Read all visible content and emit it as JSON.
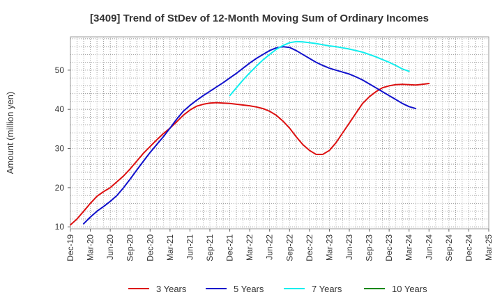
{
  "chart_data": {
    "type": "line",
    "title": "[3409]  Trend of StDev of 12-Month Moving Sum of Ordinary Incomes",
    "xlabel": "",
    "ylabel": "Amount (million yen)",
    "ylim": [
      9.5,
      58.5
    ],
    "yticks": [
      10,
      20,
      30,
      40,
      50
    ],
    "grid": true,
    "legend_position": "bottom",
    "x_labels": [
      "Dec-19",
      "Mar-20",
      "Jun-20",
      "Sep-20",
      "Dec-20",
      "Mar-21",
      "Jun-21",
      "Sep-21",
      "Dec-21",
      "Mar-22",
      "Jun-22",
      "Sep-22",
      "Dec-22",
      "Mar-23",
      "Jun-23",
      "Sep-23",
      "Dec-23",
      "Mar-24",
      "Jun-24",
      "Sep-24",
      "Dec-24",
      "Mar-25"
    ],
    "series": [
      {
        "name": "3 Years",
        "color": "#dd1111",
        "values": [
          10.5,
          12.0,
          14.0,
          16.0,
          17.8,
          19.0,
          20.0,
          21.5,
          23.0,
          24.8,
          26.8,
          28.8,
          30.5,
          32.2,
          33.8,
          35.2,
          36.8,
          38.5,
          39.8,
          40.8,
          41.3,
          41.6,
          41.7,
          41.6,
          41.5,
          41.3,
          41.1,
          40.9,
          40.6,
          40.2,
          39.5,
          38.5,
          37.0,
          35.2,
          33.0,
          31.0,
          29.5,
          28.5,
          28.5,
          29.5,
          31.5,
          34.0,
          36.5,
          39.0,
          41.5,
          43.2,
          44.5,
          45.5,
          46.0,
          46.3,
          46.4,
          46.3,
          46.2,
          46.4,
          46.6
        ]
      },
      {
        "name": "5 Years",
        "color": "#1111cc",
        "values": [
          null,
          null,
          10.8,
          12.5,
          14.0,
          15.2,
          16.5,
          18.0,
          20.0,
          22.2,
          24.5,
          26.8,
          29.0,
          31.0,
          33.0,
          35.2,
          37.5,
          39.5,
          41.0,
          42.3,
          43.5,
          44.6,
          45.7,
          46.8,
          48.0,
          49.2,
          50.5,
          51.8,
          53.0,
          54.0,
          55.0,
          55.7,
          56.0,
          55.8,
          55.0,
          54.0,
          53.0,
          52.0,
          51.2,
          50.5,
          50.0,
          49.5,
          49.0,
          48.3,
          47.5,
          46.5,
          45.5,
          44.5,
          43.5,
          42.5,
          41.5,
          40.7,
          40.2
        ]
      },
      {
        "name": "7 Years",
        "color": "#11eeee",
        "values": [
          null,
          null,
          null,
          null,
          null,
          null,
          null,
          null,
          null,
          null,
          null,
          null,
          null,
          null,
          null,
          null,
          null,
          null,
          null,
          null,
          null,
          null,
          null,
          null,
          43.5,
          45.5,
          47.5,
          49.3,
          51.0,
          52.6,
          54.0,
          55.3,
          56.3,
          57.0,
          57.3,
          57.2,
          57.0,
          56.8,
          56.5,
          56.2,
          56.0,
          55.7,
          55.4,
          55.0,
          54.6,
          54.0,
          53.4,
          52.7,
          52.0,
          51.2,
          50.3,
          49.7
        ]
      },
      {
        "name": "10 Years",
        "color": "#118811",
        "values": []
      }
    ]
  }
}
